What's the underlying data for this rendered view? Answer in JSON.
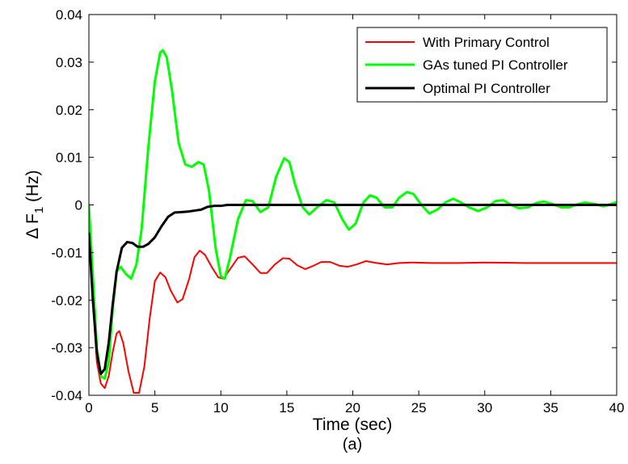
{
  "chart_data": {
    "type": "line",
    "xlabel": "Time (sec)",
    "ylabel_main": "Δ F",
    "ylabel_sub": "1",
    "ylabel_unit": " (Hz)",
    "caption": "(a)",
    "xlim": [
      0,
      40
    ],
    "ylim": [
      -0.04,
      0.04
    ],
    "xticks": [
      0,
      5,
      10,
      15,
      20,
      25,
      30,
      35,
      40
    ],
    "yticks": [
      -0.04,
      -0.03,
      -0.02,
      -0.01,
      0,
      0.01,
      0.02,
      0.03,
      0.04
    ],
    "xtick_labels": [
      "0",
      "5",
      "10",
      "15",
      "20",
      "25",
      "30",
      "35",
      "40"
    ],
    "ytick_labels": [
      "-0.04",
      "-0.03",
      "-0.02",
      "-0.01",
      "0",
      "0.01",
      "0.02",
      "0.03",
      "0.04"
    ],
    "grid": false,
    "legend_position": "top-right",
    "series": [
      {
        "name": "With Primary Control",
        "color": "#ff0000",
        "width": 2,
        "points": [
          [
            0,
            -0.006
          ],
          [
            0.3,
            -0.02
          ],
          [
            0.6,
            -0.033
          ],
          [
            0.9,
            -0.0375
          ],
          [
            1.2,
            -0.0385
          ],
          [
            1.5,
            -0.036
          ],
          [
            1.8,
            -0.031
          ],
          [
            2.1,
            -0.027
          ],
          [
            2.3,
            -0.0265
          ],
          [
            2.6,
            -0.029
          ],
          [
            3.0,
            -0.035
          ],
          [
            3.4,
            -0.0395
          ],
          [
            3.8,
            -0.0395
          ],
          [
            4.2,
            -0.034
          ],
          [
            4.6,
            -0.024
          ],
          [
            5.0,
            -0.016
          ],
          [
            5.4,
            -0.0142
          ],
          [
            5.8,
            -0.0152
          ],
          [
            6.2,
            -0.018
          ],
          [
            6.7,
            -0.0205
          ],
          [
            7.1,
            -0.0198
          ],
          [
            7.6,
            -0.0155
          ],
          [
            8.0,
            -0.011
          ],
          [
            8.4,
            -0.0096
          ],
          [
            8.8,
            -0.0105
          ],
          [
            9.3,
            -0.013
          ],
          [
            9.8,
            -0.0152
          ],
          [
            10.2,
            -0.0155
          ],
          [
            10.7,
            -0.0135
          ],
          [
            11.3,
            -0.0111
          ],
          [
            11.8,
            -0.0108
          ],
          [
            12.4,
            -0.0125
          ],
          [
            13.0,
            -0.0143
          ],
          [
            13.5,
            -0.0143
          ],
          [
            14.1,
            -0.0125
          ],
          [
            14.7,
            -0.0112
          ],
          [
            15.2,
            -0.0113
          ],
          [
            15.8,
            -0.0127
          ],
          [
            16.4,
            -0.0135
          ],
          [
            17.0,
            -0.0128
          ],
          [
            17.6,
            -0.012
          ],
          [
            18.3,
            -0.012
          ],
          [
            19.0,
            -0.0128
          ],
          [
            19.6,
            -0.013
          ],
          [
            20.3,
            -0.0125
          ],
          [
            21.0,
            -0.0118
          ],
          [
            21.8,
            -0.0122
          ],
          [
            22.6,
            -0.0125
          ],
          [
            23.5,
            -0.0122
          ],
          [
            24.5,
            -0.0121
          ],
          [
            26.0,
            -0.0122
          ],
          [
            28.0,
            -0.0122
          ],
          [
            30.0,
            -0.0121
          ],
          [
            33.0,
            -0.0122
          ],
          [
            36.0,
            -0.0122
          ],
          [
            40.0,
            -0.0122
          ]
        ]
      },
      {
        "name": "GAs tuned PI Controller",
        "color": "#00ff00",
        "width": 3,
        "points": [
          [
            0,
            0.0
          ],
          [
            0.3,
            -0.015
          ],
          [
            0.6,
            -0.03
          ],
          [
            0.9,
            -0.036
          ],
          [
            1.2,
            -0.0365
          ],
          [
            1.5,
            -0.033
          ],
          [
            1.8,
            -0.022
          ],
          [
            2.1,
            -0.014
          ],
          [
            2.4,
            -0.013
          ],
          [
            2.8,
            -0.0145
          ],
          [
            3.2,
            -0.0155
          ],
          [
            3.6,
            -0.0125
          ],
          [
            4.0,
            -0.005
          ],
          [
            4.5,
            0.012
          ],
          [
            5.0,
            0.026
          ],
          [
            5.4,
            0.032
          ],
          [
            5.6,
            0.0325
          ],
          [
            5.9,
            0.031
          ],
          [
            6.3,
            0.024
          ],
          [
            6.8,
            0.013
          ],
          [
            7.3,
            0.0085
          ],
          [
            7.8,
            0.008
          ],
          [
            8.3,
            0.009
          ],
          [
            8.7,
            0.0085
          ],
          [
            9.1,
            0.003
          ],
          [
            9.6,
            -0.009
          ],
          [
            10.0,
            -0.015
          ],
          [
            10.3,
            -0.0155
          ],
          [
            10.7,
            -0.011
          ],
          [
            11.3,
            -0.003
          ],
          [
            11.9,
            0.001
          ],
          [
            12.4,
            0.0008
          ],
          [
            13.0,
            -0.0015
          ],
          [
            13.6,
            -0.0005
          ],
          [
            14.2,
            0.006
          ],
          [
            14.8,
            0.0098
          ],
          [
            15.2,
            0.009
          ],
          [
            15.6,
            0.0045
          ],
          [
            16.2,
            -0.0005
          ],
          [
            16.7,
            -0.002
          ],
          [
            17.3,
            -0.0005
          ],
          [
            18.0,
            0.001
          ],
          [
            18.6,
            0.0005
          ],
          [
            19.2,
            -0.003
          ],
          [
            19.7,
            -0.0052
          ],
          [
            20.2,
            -0.004
          ],
          [
            20.8,
            0.0005
          ],
          [
            21.3,
            0.002
          ],
          [
            21.8,
            0.0015
          ],
          [
            22.4,
            -0.0005
          ],
          [
            23.0,
            -0.0005
          ],
          [
            23.5,
            0.0015
          ],
          [
            24.1,
            0.0027
          ],
          [
            24.6,
            0.0023
          ],
          [
            25.2,
            0.0
          ],
          [
            25.8,
            -0.0018
          ],
          [
            26.4,
            -0.001
          ],
          [
            27.0,
            0.0005
          ],
          [
            27.6,
            0.0013
          ],
          [
            28.2,
            0.0005
          ],
          [
            28.8,
            -0.0005
          ],
          [
            29.5,
            -0.0013
          ],
          [
            30.2,
            -0.0005
          ],
          [
            30.8,
            0.0008
          ],
          [
            31.4,
            0.001
          ],
          [
            32.0,
            0.0
          ],
          [
            32.6,
            -0.0007
          ],
          [
            33.3,
            -0.0005
          ],
          [
            33.9,
            0.0004
          ],
          [
            34.5,
            0.0007
          ],
          [
            35.1,
            0.0002
          ],
          [
            35.8,
            -0.0005
          ],
          [
            36.4,
            -0.0005
          ],
          [
            37.0,
            0.0001
          ],
          [
            37.6,
            0.0005
          ],
          [
            38.3,
            0.0002
          ],
          [
            39.0,
            -0.0003
          ],
          [
            39.6,
            0.0002
          ],
          [
            40.0,
            0.0006
          ]
        ]
      },
      {
        "name": "Optimal PI Controller",
        "color": "#000000",
        "width": 3,
        "points": [
          [
            0,
            -0.006
          ],
          [
            0.3,
            -0.02
          ],
          [
            0.6,
            -0.031
          ],
          [
            0.9,
            -0.0355
          ],
          [
            1.2,
            -0.0345
          ],
          [
            1.5,
            -0.029
          ],
          [
            1.8,
            -0.021
          ],
          [
            2.1,
            -0.014
          ],
          [
            2.5,
            -0.009
          ],
          [
            2.9,
            -0.0078
          ],
          [
            3.3,
            -0.008
          ],
          [
            3.7,
            -0.0088
          ],
          [
            4.1,
            -0.0088
          ],
          [
            4.5,
            -0.0082
          ],
          [
            5.0,
            -0.0068
          ],
          [
            5.5,
            -0.0045
          ],
          [
            6.0,
            -0.0025
          ],
          [
            6.5,
            -0.0016
          ],
          [
            7.0,
            -0.0015
          ],
          [
            7.5,
            -0.0014
          ],
          [
            8.0,
            -0.0012
          ],
          [
            8.5,
            -0.001
          ],
          [
            9.0,
            -0.0004
          ],
          [
            9.5,
            -0.0002
          ],
          [
            10.0,
            -0.0002
          ],
          [
            10.5,
            0.0
          ],
          [
            12.0,
            0.0
          ],
          [
            15.0,
            0.0
          ],
          [
            20.0,
            0.0
          ],
          [
            25.0,
            0.0
          ],
          [
            30.0,
            0.0
          ],
          [
            35.0,
            0.0
          ],
          [
            40.0,
            0.0
          ]
        ]
      }
    ]
  }
}
